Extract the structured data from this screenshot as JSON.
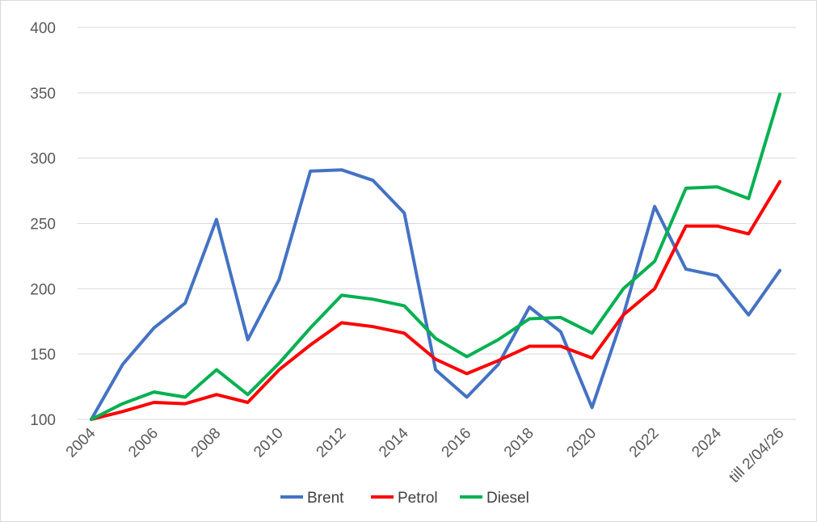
{
  "chart_data": {
    "type": "line",
    "x": [
      "2004",
      "2005",
      "2006",
      "2007",
      "2008",
      "2009",
      "2010",
      "2011",
      "2012",
      "2013",
      "2014",
      "2015",
      "2016",
      "2017",
      "2018",
      "2019",
      "2020",
      "2021",
      "2022",
      "2023",
      "2024",
      "2025",
      "till 2/04/26"
    ],
    "x_tick_labels": [
      "2004",
      "2006",
      "2008",
      "2010",
      "2012",
      "2014",
      "2016",
      "2018",
      "2020",
      "2022",
      "2024",
      "till 2/04/26"
    ],
    "y_tick_labels": [
      "100",
      "150",
      "200",
      "250",
      "300",
      "350",
      "400"
    ],
    "ylim": [
      100,
      400
    ],
    "grid": true,
    "legend_position": "bottom",
    "series": [
      {
        "name": "Brent",
        "color": "#4472C4",
        "values": [
          100,
          142,
          170,
          189,
          253,
          161,
          207,
          290,
          291,
          283,
          258,
          138,
          117,
          142,
          186,
          167,
          109,
          180,
          263,
          215,
          210,
          180,
          214
        ]
      },
      {
        "name": "Petrol",
        "color": "#FF0000",
        "values": [
          100,
          106,
          113,
          112,
          119,
          113,
          138,
          157,
          174,
          171,
          166,
          146,
          135,
          145,
          156,
          156,
          147,
          180,
          200,
          248,
          248,
          242,
          282
        ]
      },
      {
        "name": "Diesel",
        "color": "#00B050",
        "values": [
          100,
          112,
          121,
          117,
          138,
          119,
          143,
          170,
          195,
          192,
          187,
          162,
          148,
          161,
          177,
          178,
          166,
          200,
          221,
          277,
          278,
          269,
          349
        ]
      }
    ]
  }
}
